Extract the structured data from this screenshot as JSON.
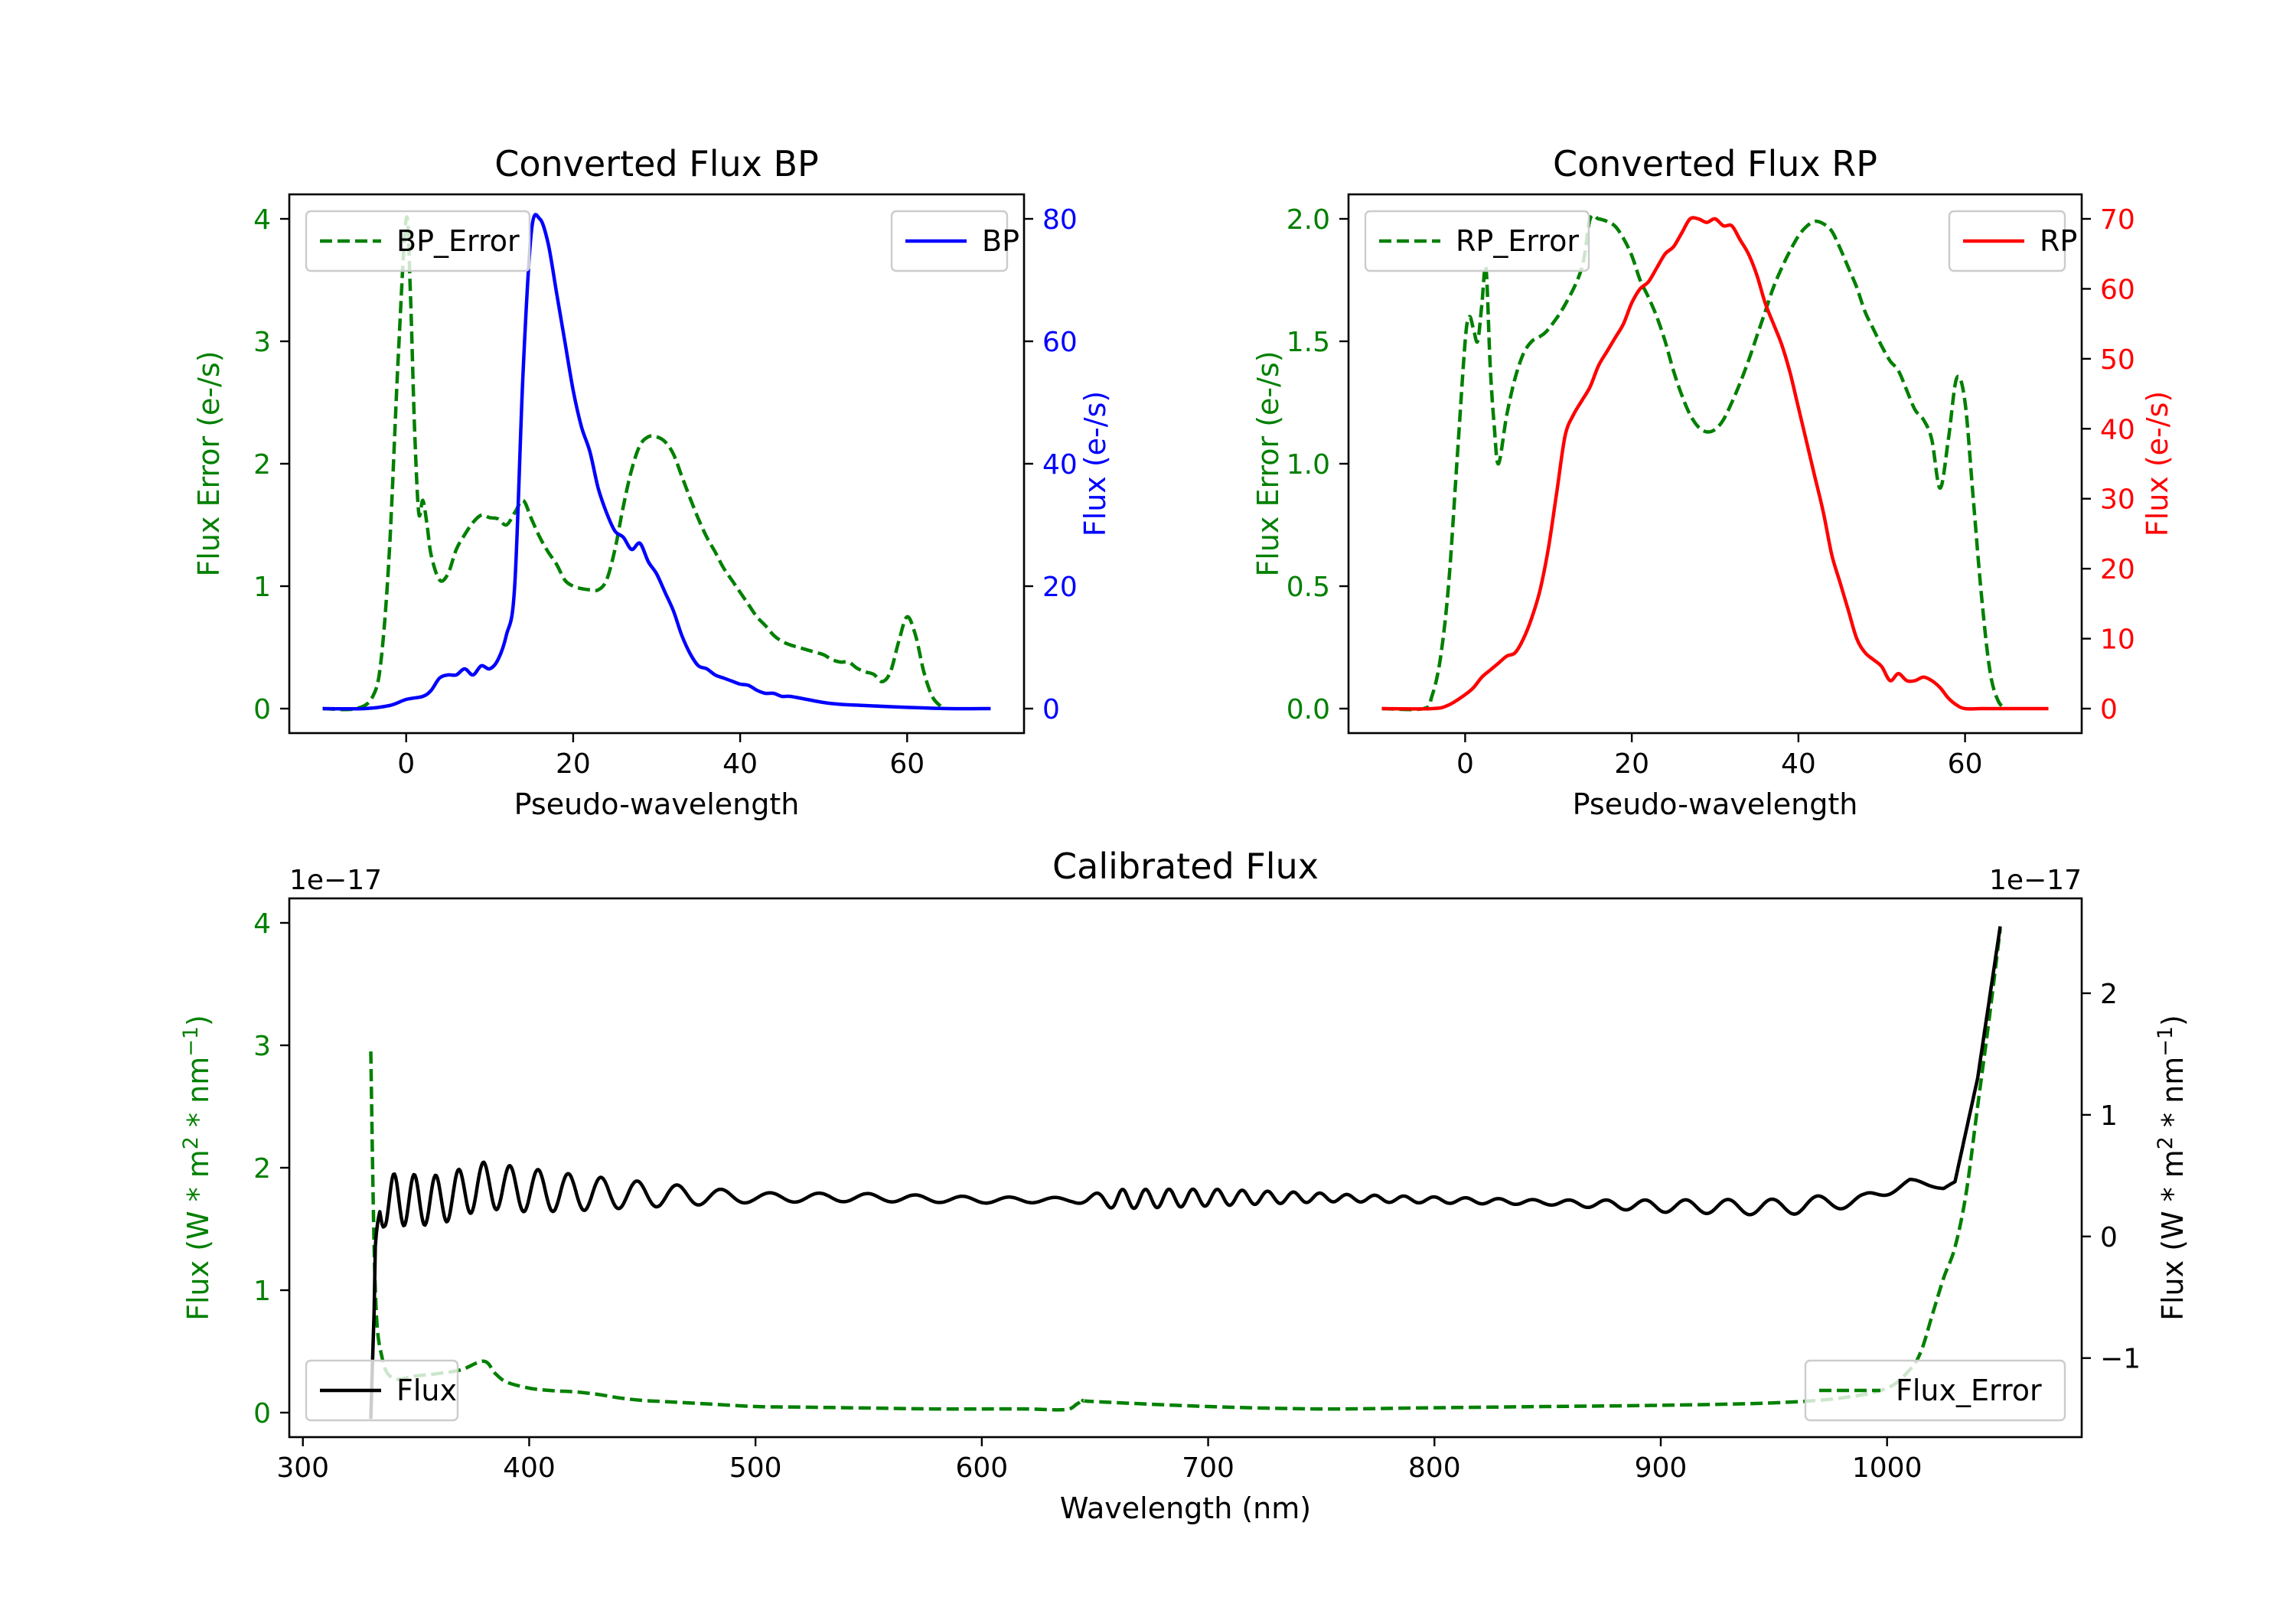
{
  "chart_data": [
    {
      "id": "bp",
      "type": "line",
      "title": "Converted Flux BP",
      "xlabel": "Pseudo-wavelength",
      "xlim": [
        -14,
        74
      ],
      "xticks": [
        "0",
        "20",
        "40",
        "60"
      ],
      "left_axis": {
        "label": "Flux Error (e-/s)",
        "color": "#008000",
        "ylim": [
          -0.2,
          4.2
        ],
        "ticks": [
          "0",
          "1",
          "2",
          "3",
          "4"
        ]
      },
      "right_axis": {
        "label": "Flux (e-/s)",
        "color": "#0000ff",
        "ylim": [
          -4,
          84
        ],
        "ticks": [
          "0",
          "20",
          "40",
          "60",
          "80"
        ]
      },
      "series": [
        {
          "name": "BP_Error",
          "axis": "left",
          "color": "#008000",
          "dash": true,
          "x": [
            -10,
            -6,
            -4,
            -3,
            -2,
            -1,
            0,
            0.5,
            1,
            1.5,
            2,
            2.5,
            3,
            4,
            5,
            6,
            7,
            8,
            9,
            10,
            11,
            12,
            13,
            14,
            15,
            16,
            17,
            18,
            19,
            20,
            21,
            22,
            23,
            24,
            25,
            26,
            27,
            28,
            29,
            30,
            31,
            32,
            33,
            34,
            35,
            36,
            37,
            38,
            39,
            40,
            41,
            42,
            43,
            44,
            45,
            46,
            47,
            48,
            49,
            50,
            51,
            52,
            53,
            54,
            55,
            56,
            57,
            58,
            59,
            60,
            61,
            62,
            63,
            64
          ],
          "y": [
            0,
            0,
            0.1,
            0.4,
            1.3,
            2.8,
            4.0,
            3.4,
            2.3,
            1.6,
            1.7,
            1.5,
            1.25,
            1.05,
            1.1,
            1.3,
            1.42,
            1.52,
            1.58,
            1.56,
            1.55,
            1.5,
            1.6,
            1.7,
            1.55,
            1.4,
            1.28,
            1.18,
            1.05,
            1.0,
            0.98,
            0.97,
            0.97,
            1.05,
            1.3,
            1.65,
            1.95,
            2.15,
            2.22,
            2.22,
            2.18,
            2.08,
            1.9,
            1.72,
            1.55,
            1.4,
            1.28,
            1.15,
            1.05,
            0.95,
            0.85,
            0.75,
            0.68,
            0.6,
            0.55,
            0.52,
            0.5,
            0.48,
            0.46,
            0.44,
            0.4,
            0.38,
            0.38,
            0.33,
            0.3,
            0.28,
            0.22,
            0.3,
            0.55,
            0.75,
            0.6,
            0.3,
            0.1,
            0.02
          ]
        },
        {
          "name": "BP",
          "axis": "right",
          "color": "#0000ff",
          "dash": false,
          "x": [
            -10,
            -5,
            -2,
            0,
            2,
            3,
            4,
            5,
            6,
            7,
            8,
            9,
            10,
            11,
            12,
            13,
            14,
            15,
            16,
            17,
            18,
            19,
            20,
            21,
            22,
            23,
            24,
            25,
            26,
            27,
            28,
            29,
            30,
            31,
            32,
            33,
            34,
            35,
            36,
            37,
            38,
            39,
            40,
            41,
            42,
            43,
            44,
            45,
            46,
            48,
            50,
            52,
            55,
            60,
            65,
            70
          ],
          "y": [
            0,
            0,
            0.5,
            1.5,
            2,
            3,
            5,
            5.5,
            5.5,
            6.5,
            5.5,
            7,
            6.5,
            8,
            12,
            20,
            55,
            78,
            80,
            76,
            68,
            60,
            52,
            46,
            42,
            36,
            32,
            29,
            28,
            26,
            27,
            24,
            22,
            19,
            16,
            12,
            9,
            7,
            6.5,
            5.5,
            5,
            4.5,
            4,
            3.8,
            3,
            2.5,
            2.5,
            2,
            2,
            1.5,
            1,
            0.7,
            0.5,
            0.2,
            0,
            0
          ]
        }
      ],
      "legends": [
        {
          "position": "upper left",
          "entries": [
            "BP_Error"
          ]
        },
        {
          "position": "upper right",
          "entries": [
            "BP"
          ]
        }
      ]
    },
    {
      "id": "rp",
      "type": "line",
      "title": "Converted Flux RP",
      "xlabel": "Pseudo-wavelength",
      "xlim": [
        -14,
        74
      ],
      "xticks": [
        "0",
        "20",
        "40",
        "60"
      ],
      "left_axis": {
        "label": "Flux Error (e-/s)",
        "color": "#008000",
        "ylim": [
          -0.1,
          2.1
        ],
        "ticks": [
          "0.0",
          "0.5",
          "1.0",
          "1.5",
          "2.0"
        ]
      },
      "right_axis": {
        "label": "Flux (e-/s)",
        "color": "#ff0000",
        "ylim": [
          -3.5,
          73.5
        ],
        "ticks": [
          "0",
          "10",
          "20",
          "30",
          "40",
          "50",
          "60",
          "70"
        ]
      },
      "series": [
        {
          "name": "RP_Error",
          "axis": "left",
          "color": "#008000",
          "dash": true,
          "x": [
            -10,
            -5,
            -4,
            -3,
            -2,
            -1,
            0,
            0.5,
            1,
            1.5,
            2,
            2.5,
            3,
            3.5,
            4,
            5,
            6,
            7,
            8,
            9,
            10,
            12,
            14,
            15,
            16,
            17,
            18,
            19,
            20,
            21,
            22,
            23,
            24,
            25,
            26,
            27,
            28,
            29,
            30,
            31,
            32,
            33,
            34,
            35,
            36,
            37,
            38,
            39,
            40,
            41,
            42,
            43,
            44,
            45,
            46,
            47,
            48,
            49,
            50,
            51,
            52,
            53,
            54,
            55,
            56,
            57,
            58,
            59,
            60,
            61,
            62,
            63,
            64,
            65
          ],
          "y": [
            0,
            0,
            0.05,
            0.2,
            0.5,
            1.0,
            1.5,
            1.6,
            1.55,
            1.5,
            1.65,
            1.8,
            1.4,
            1.15,
            1.0,
            1.2,
            1.35,
            1.45,
            1.5,
            1.52,
            1.55,
            1.65,
            1.8,
            2.0,
            2.0,
            1.99,
            1.97,
            1.92,
            1.85,
            1.75,
            1.68,
            1.6,
            1.5,
            1.38,
            1.28,
            1.2,
            1.15,
            1.13,
            1.14,
            1.18,
            1.25,
            1.33,
            1.42,
            1.52,
            1.62,
            1.72,
            1.8,
            1.87,
            1.93,
            1.97,
            1.99,
            1.98,
            1.95,
            1.88,
            1.8,
            1.72,
            1.62,
            1.55,
            1.48,
            1.42,
            1.38,
            1.3,
            1.22,
            1.18,
            1.1,
            0.9,
            1.1,
            1.35,
            1.25,
            0.85,
            0.45,
            0.15,
            0.03,
            0
          ]
        },
        {
          "name": "RP",
          "axis": "right",
          "color": "#ff0000",
          "dash": false,
          "x": [
            -10,
            -4,
            -2,
            0,
            1,
            2,
            3,
            4,
            5,
            6,
            7,
            8,
            9,
            10,
            11,
            12,
            13,
            14,
            15,
            16,
            17,
            18,
            19,
            20,
            21,
            22,
            23,
            24,
            25,
            26,
            27,
            28,
            29,
            30,
            31,
            32,
            33,
            34,
            35,
            36,
            37,
            38,
            39,
            40,
            41,
            42,
            43,
            44,
            45,
            46,
            47,
            48,
            49,
            50,
            51,
            52,
            53,
            54,
            55,
            56,
            57,
            58,
            59,
            60,
            62,
            65,
            70
          ],
          "y": [
            0,
            0,
            0.5,
            2,
            3,
            4.5,
            5.5,
            6.5,
            7.5,
            8,
            10,
            13,
            17,
            23,
            31,
            39,
            42,
            44,
            46,
            49,
            51,
            53,
            55,
            58,
            60,
            61,
            63,
            65,
            66,
            68,
            70,
            70,
            69.5,
            70,
            69,
            69,
            67,
            65,
            62,
            58,
            55,
            52,
            48,
            43,
            38,
            33,
            28,
            22,
            18,
            14,
            10,
            8,
            7,
            6,
            4,
            5,
            4,
            4,
            4.5,
            4,
            3,
            1.5,
            0.5,
            0,
            0,
            0,
            0
          ]
        }
      ],
      "legends": [
        {
          "position": "upper left",
          "entries": [
            "RP_Error"
          ]
        },
        {
          "position": "upper right",
          "entries": [
            "RP"
          ]
        }
      ]
    },
    {
      "id": "cal",
      "type": "line",
      "title": "Calibrated Flux",
      "xlabel": "Wavelength (nm)",
      "xlim": [
        294,
        1086
      ],
      "xticks": [
        "300",
        "400",
        "500",
        "600",
        "700",
        "800",
        "900",
        "1000"
      ],
      "left_axis": {
        "label": "Flux (W * m^2 * nm^-1)",
        "label_parts": {
          "base": "Flux (W * m",
          "sup1": "2",
          "mid": " * nm",
          "sup2": "−1",
          "end": ")"
        },
        "color": "#008000",
        "ylim": [
          -0.2,
          4.2
        ],
        "ticks": [
          "0",
          "1",
          "2",
          "3",
          "4"
        ],
        "offset": "1e−17"
      },
      "right_axis": {
        "label": "Flux (W * m^2 * nm^-1)",
        "label_parts": {
          "base": "Flux (W * m",
          "sup1": "2",
          "mid": " * nm",
          "sup2": "−1",
          "end": ")"
        },
        "color": "#000000",
        "ylim": [
          -1.65,
          2.78
        ],
        "ticks": [
          "−1",
          "0",
          "1",
          "2"
        ],
        "offset": "1e−17"
      },
      "series": [
        {
          "name": "Flux_Error",
          "axis": "left",
          "color": "#008000",
          "dash": true,
          "x": [
            330,
            332,
            335,
            340,
            350,
            360,
            370,
            380,
            385,
            390,
            400,
            410,
            420,
            430,
            440,
            450,
            460,
            480,
            500,
            520,
            540,
            560,
            580,
            600,
            620,
            637,
            642,
            645,
            650,
            700,
            750,
            800,
            850,
            900,
            950,
            980,
            1000,
            1010,
            1015,
            1020,
            1025,
            1030,
            1035,
            1040,
            1045,
            1050
          ],
          "y": [
            2.95,
            1.0,
            0.45,
            0.28,
            0.3,
            0.32,
            0.35,
            0.42,
            0.32,
            0.25,
            0.2,
            0.18,
            0.17,
            0.15,
            0.12,
            0.1,
            0.09,
            0.07,
            0.05,
            0.045,
            0.04,
            0.035,
            0.03,
            0.03,
            0.03,
            0.025,
            0.07,
            0.1,
            0.09,
            0.05,
            0.03,
            0.04,
            0.05,
            0.06,
            0.08,
            0.12,
            0.2,
            0.35,
            0.5,
            0.8,
            1.1,
            1.35,
            1.8,
            2.5,
            3.2,
            3.95
          ]
        },
        {
          "name": "Flux",
          "axis": "right",
          "color": "#000000",
          "dash": false,
          "osc": {
            "base": [
              [
                330,
                -1.5
              ],
              [
                332,
                -0.3
              ],
              [
                334,
                0.2
              ],
              [
                336,
                0.3
              ],
              [
                345,
                0.3
              ],
              [
                360,
                0.3
              ],
              [
                380,
                0.42
              ],
              [
                400,
                0.38
              ],
              [
                420,
                0.36
              ],
              [
                440,
                0.35
              ],
              [
                460,
                0.34
              ],
              [
                500,
                0.32
              ],
              [
                550,
                0.32
              ],
              [
                600,
                0.3
              ],
              [
                640,
                0.3
              ],
              [
                700,
                0.32
              ],
              [
                750,
                0.32
              ],
              [
                800,
                0.3
              ],
              [
                850,
                0.28
              ],
              [
                900,
                0.25
              ],
              [
                950,
                0.24
              ],
              [
                990,
                0.3
              ],
              [
                1010,
                0.45
              ],
              [
                1025,
                0.4
              ],
              [
                1030,
                0.45
              ],
              [
                1040,
                1.3
              ],
              [
                1050,
                2.55
              ]
            ],
            "amp": [
              [
                332,
                0.22
              ],
              [
                400,
                0.18
              ],
              [
                440,
                0.12
              ],
              [
                500,
                0.04
              ],
              [
                640,
                0.02
              ],
              [
                660,
                0.08
              ],
              [
                700,
                0.07
              ],
              [
                760,
                0.03
              ],
              [
                850,
                0.02
              ],
              [
                900,
                0.05
              ],
              [
                960,
                0.07
              ],
              [
                990,
                0.05
              ],
              [
                1030,
                0
              ],
              [
                1050,
                0
              ]
            ],
            "period": [
              [
                332,
                8
              ],
              [
                420,
                14
              ],
              [
                500,
                22
              ],
              [
                640,
                20
              ],
              [
                660,
                10
              ],
              [
                760,
                12
              ],
              [
                1000,
                22
              ],
              [
                1050,
                22
              ]
            ]
          }
        }
      ],
      "legends": [
        {
          "position": "lower left",
          "entries": [
            "Flux"
          ]
        },
        {
          "position": "lower right",
          "entries": [
            "Flux_Error"
          ]
        }
      ]
    }
  ]
}
